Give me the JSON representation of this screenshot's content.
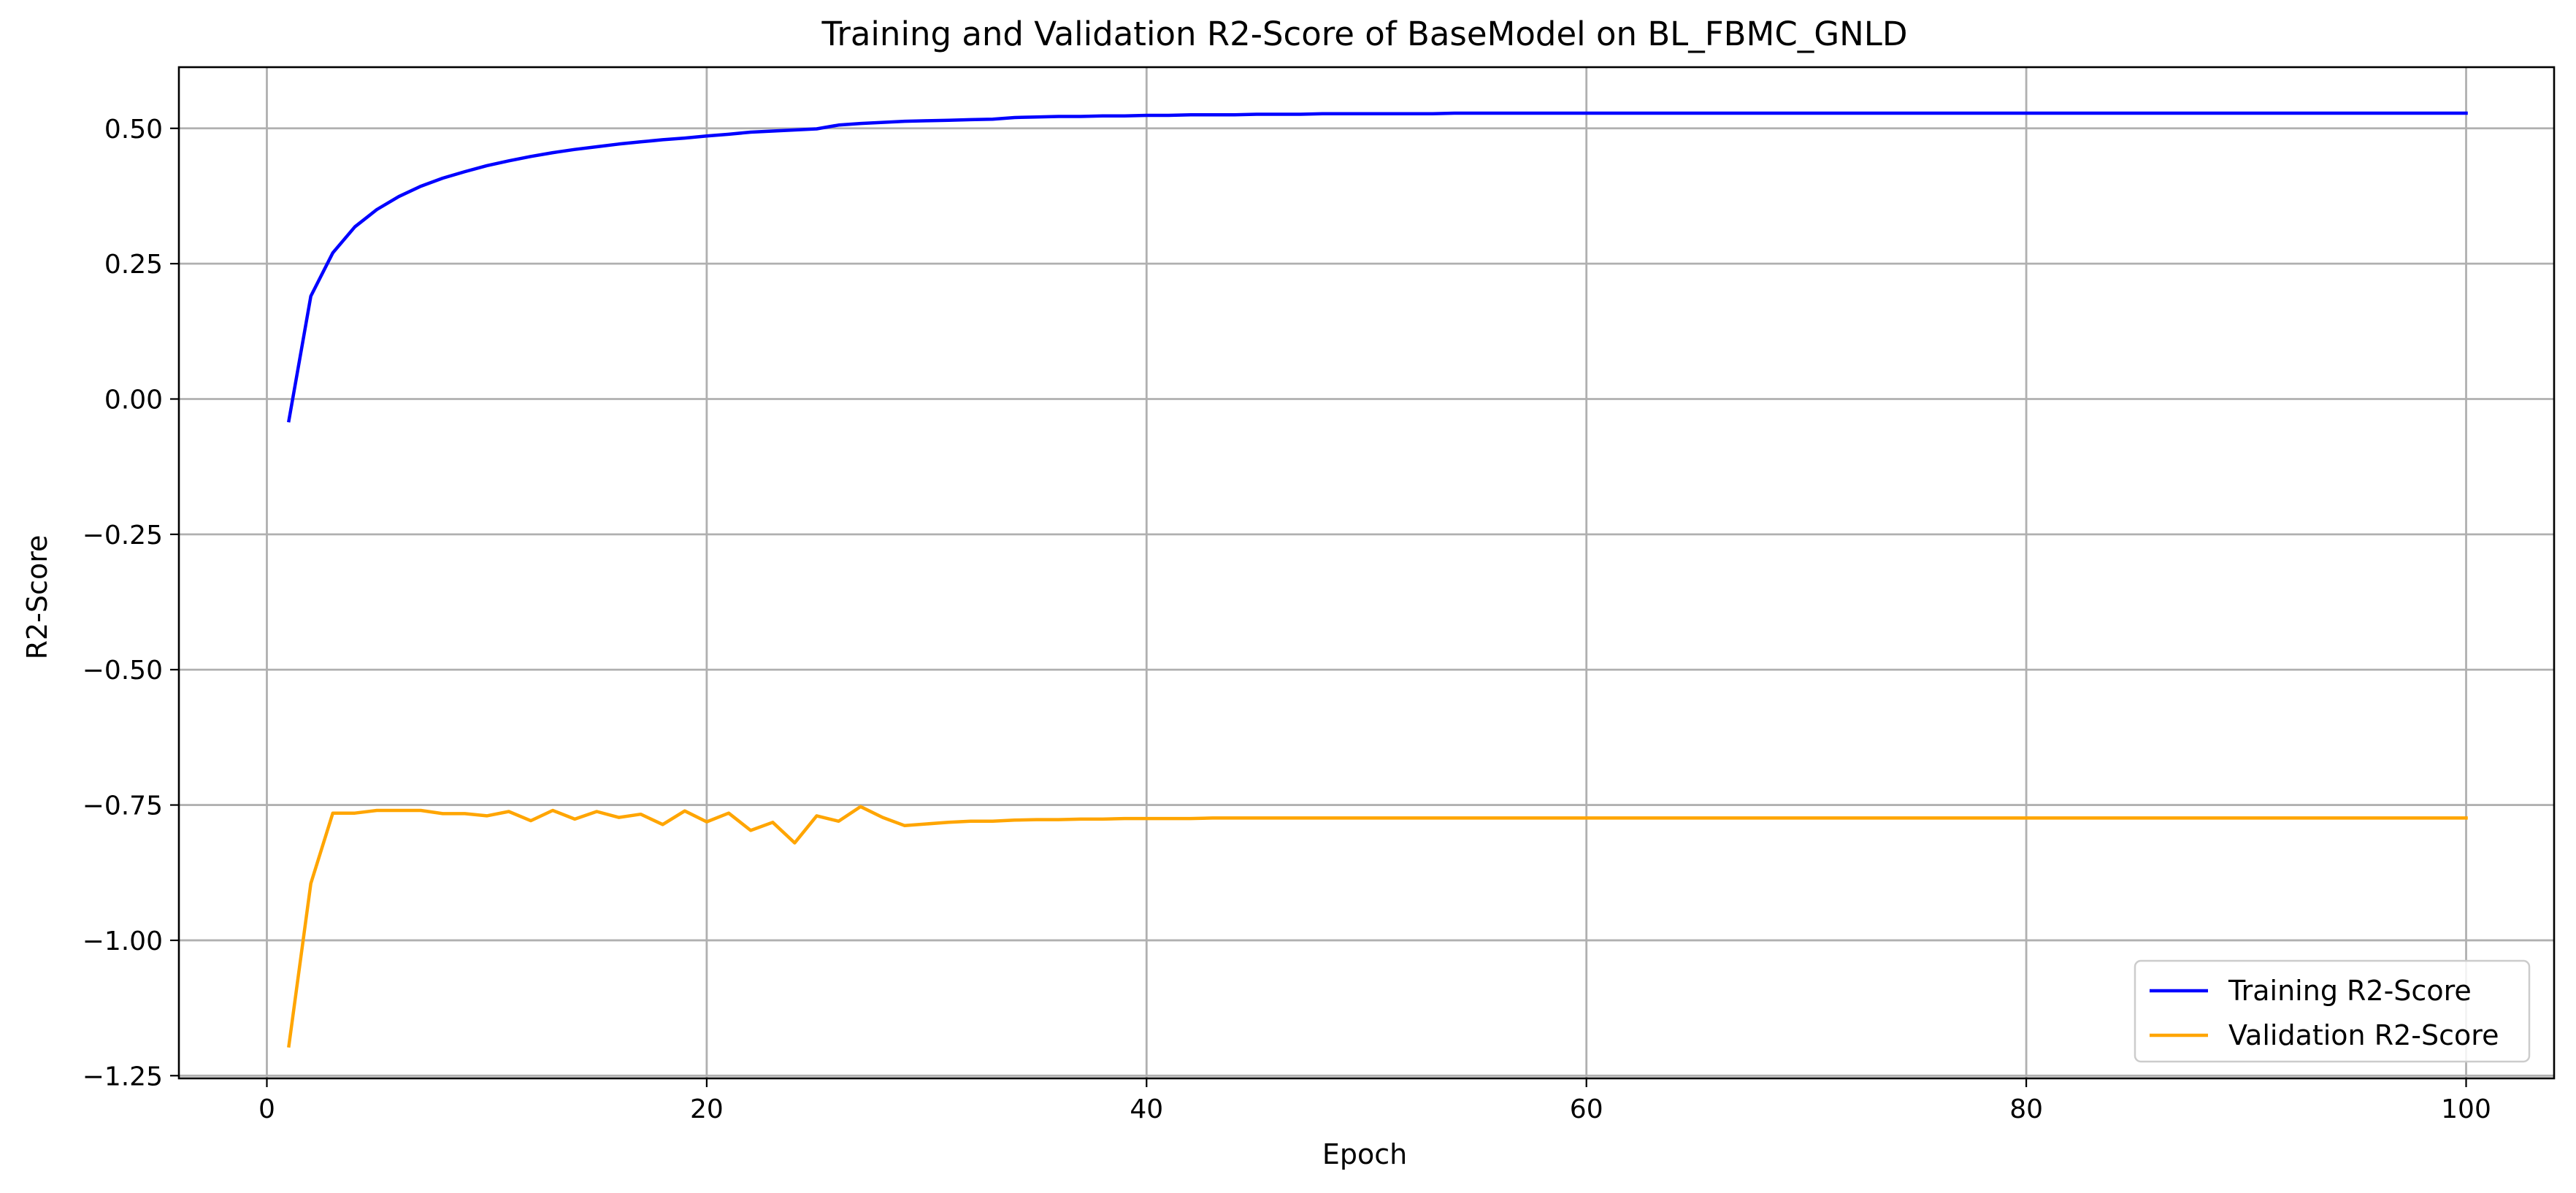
{
  "chart_data": {
    "type": "line",
    "title": "Training and Validation R2-Score of BaseModel on BL_FBMC_GNLD",
    "xlabel": "Epoch",
    "ylabel": "R2-Score",
    "xlim": [
      -4,
      104
    ],
    "ylim": [
      -1.255,
      0.613
    ],
    "xticks": [
      0,
      20,
      40,
      60,
      80,
      100
    ],
    "yticks": [
      -1.25,
      -1.0,
      -0.75,
      -0.5,
      -0.25,
      0.0,
      0.25,
      0.5
    ],
    "xtick_labels": [
      "0",
      "20",
      "40",
      "60",
      "80",
      "100"
    ],
    "ytick_labels": [
      "−1.25",
      "−1.00",
      "−0.75",
      "−0.50",
      "−0.25",
      "0.00",
      "0.25",
      "0.50"
    ],
    "grid": true,
    "legend_position": "lower-right",
    "series": [
      {
        "name": "Training R2-Score",
        "color": "#0000ff",
        "x": [
          1,
          2,
          3,
          4,
          5,
          6,
          7,
          8,
          9,
          10,
          11,
          12,
          13,
          14,
          15,
          16,
          17,
          18,
          19,
          20,
          21,
          22,
          23,
          24,
          25,
          26,
          27,
          28,
          29,
          30,
          31,
          32,
          33,
          34,
          35,
          36,
          37,
          38,
          39,
          40,
          41,
          42,
          43,
          44,
          45,
          46,
          47,
          48,
          49,
          50,
          51,
          52,
          53,
          54,
          55,
          56,
          57,
          58,
          59,
          60,
          61,
          62,
          63,
          64,
          65,
          66,
          67,
          68,
          69,
          70,
          71,
          72,
          73,
          74,
          75,
          76,
          77,
          78,
          79,
          80,
          81,
          82,
          83,
          84,
          85,
          86,
          87,
          88,
          89,
          90,
          91,
          92,
          93,
          94,
          95,
          96,
          97,
          98,
          99,
          100
        ],
        "y": [
          -0.04,
          0.19,
          0.27,
          0.318,
          0.35,
          0.374,
          0.393,
          0.408,
          0.42,
          0.431,
          0.44,
          0.448,
          0.455,
          0.461,
          0.466,
          0.471,
          0.475,
          0.479,
          0.482,
          0.486,
          0.489,
          0.493,
          0.495,
          0.497,
          0.499,
          0.506,
          0.509,
          0.511,
          0.513,
          0.514,
          0.515,
          0.516,
          0.517,
          0.52,
          0.521,
          0.522,
          0.522,
          0.523,
          0.523,
          0.524,
          0.524,
          0.525,
          0.525,
          0.525,
          0.526,
          0.526,
          0.526,
          0.527,
          0.527,
          0.527,
          0.527,
          0.527,
          0.527,
          0.528,
          0.528,
          0.528,
          0.528,
          0.528,
          0.528,
          0.528,
          0.528,
          0.528,
          0.528,
          0.528,
          0.528,
          0.528,
          0.528,
          0.528,
          0.528,
          0.528,
          0.528,
          0.528,
          0.528,
          0.528,
          0.528,
          0.528,
          0.528,
          0.528,
          0.528,
          0.528,
          0.528,
          0.528,
          0.528,
          0.528,
          0.528,
          0.528,
          0.528,
          0.528,
          0.528,
          0.528,
          0.528,
          0.528,
          0.528,
          0.528,
          0.528,
          0.528,
          0.528,
          0.528,
          0.528,
          0.528
        ]
      },
      {
        "name": "Validation R2-Score",
        "color": "#ffa500",
        "x": [
          1,
          2,
          3,
          4,
          5,
          6,
          7,
          8,
          9,
          10,
          11,
          12,
          13,
          14,
          15,
          16,
          17,
          18,
          19,
          20,
          21,
          22,
          23,
          24,
          25,
          26,
          27,
          28,
          29,
          30,
          31,
          32,
          33,
          34,
          35,
          36,
          37,
          38,
          39,
          40,
          41,
          42,
          43,
          44,
          45,
          46,
          47,
          48,
          49,
          50,
          51,
          52,
          53,
          54,
          55,
          56,
          57,
          58,
          59,
          60,
          61,
          62,
          63,
          64,
          65,
          66,
          67,
          68,
          69,
          70,
          71,
          72,
          73,
          74,
          75,
          76,
          77,
          78,
          79,
          80,
          81,
          82,
          83,
          84,
          85,
          86,
          87,
          88,
          89,
          90,
          91,
          92,
          93,
          94,
          95,
          96,
          97,
          98,
          99,
          100
        ],
        "y": [
          -1.195,
          -0.895,
          -0.765,
          -0.765,
          -0.76,
          -0.76,
          -0.76,
          -0.766,
          -0.766,
          -0.77,
          -0.762,
          -0.779,
          -0.76,
          -0.776,
          -0.762,
          -0.773,
          -0.767,
          -0.786,
          -0.761,
          -0.781,
          -0.765,
          -0.797,
          -0.782,
          -0.82,
          -0.77,
          -0.78,
          -0.753,
          -0.773,
          -0.788,
          -0.785,
          -0.782,
          -0.78,
          -0.78,
          -0.778,
          -0.777,
          -0.777,
          -0.776,
          -0.776,
          -0.775,
          -0.775,
          -0.775,
          -0.775,
          -0.774,
          -0.774,
          -0.774,
          -0.774,
          -0.774,
          -0.774,
          -0.774,
          -0.774,
          -0.774,
          -0.774,
          -0.774,
          -0.774,
          -0.774,
          -0.774,
          -0.774,
          -0.774,
          -0.774,
          -0.774,
          -0.774,
          -0.774,
          -0.774,
          -0.774,
          -0.774,
          -0.774,
          -0.774,
          -0.774,
          -0.774,
          -0.774,
          -0.774,
          -0.774,
          -0.774,
          -0.774,
          -0.774,
          -0.774,
          -0.774,
          -0.774,
          -0.774,
          -0.774,
          -0.774,
          -0.774,
          -0.774,
          -0.774,
          -0.774,
          -0.774,
          -0.774,
          -0.774,
          -0.774,
          -0.774,
          -0.774,
          -0.774,
          -0.774,
          -0.774,
          -0.774,
          -0.774,
          -0.774,
          -0.774,
          -0.774,
          -0.774
        ]
      }
    ]
  }
}
